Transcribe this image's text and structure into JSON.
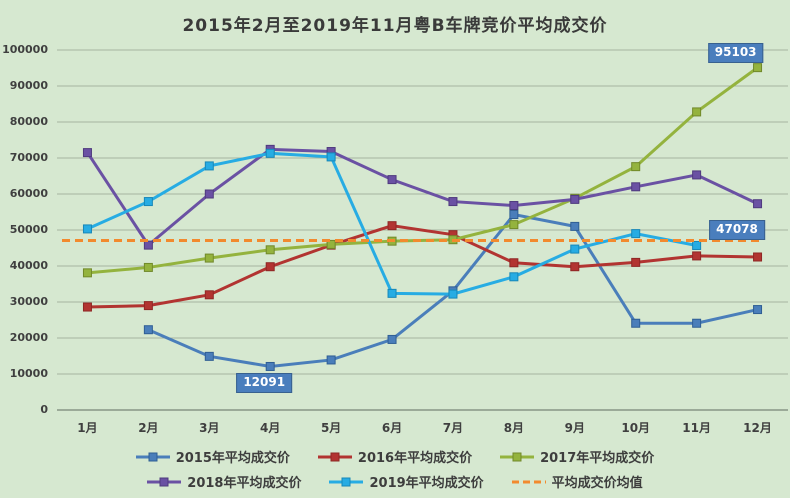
{
  "title": "2015年2月至2019年11月粤B车牌竞价平均成交价",
  "colors": {
    "background": "#D6E8D0",
    "gridline": "#A5B3A1",
    "axis_line": "#879586",
    "label_box_bg": "#4A7EBD",
    "label_box_text": "#FFFFFF"
  },
  "chart_data": {
    "type": "line",
    "categories": [
      "1月",
      "2月",
      "3月",
      "4月",
      "5月",
      "6月",
      "7月",
      "8月",
      "9月",
      "10月",
      "11月",
      "12月"
    ],
    "ylim": [
      0,
      100000
    ],
    "y_ticks": [
      "0",
      "10000",
      "20000",
      "30000",
      "40000",
      "50000",
      "60000",
      "70000",
      "80000",
      "90000",
      "100000"
    ],
    "grid": true,
    "legend_position": "bottom",
    "series": [
      {
        "name": "2015年平均成交价",
        "color": "#4A7EBA",
        "marker_border": "#2F5E94",
        "values": [
          null,
          22300,
          14900,
          12091,
          13900,
          19600,
          33100,
          54300,
          51000,
          24100,
          24100,
          27900
        ]
      },
      {
        "name": "2016年平均成交价",
        "color": "#B23431",
        "marker_border": "#8F2725",
        "values": [
          28600,
          29000,
          32000,
          39800,
          45800,
          51200,
          48700,
          40900,
          39800,
          41000,
          42800,
          42500
        ]
      },
      {
        "name": "2017年平均成交价",
        "color": "#94B33E",
        "marker_border": "#71892A",
        "values": [
          38100,
          39600,
          42200,
          44500,
          46000,
          46900,
          47300,
          51500,
          58800,
          67600,
          82800,
          95103
        ]
      },
      {
        "name": "2018年平均成交价",
        "color": "#6A51A3",
        "marker_border": "#4F3A7E",
        "values": [
          71500,
          45800,
          60000,
          72400,
          71800,
          64000,
          57900,
          56800,
          58500,
          62000,
          65300,
          57300
        ]
      },
      {
        "name": "2019年平均成交价",
        "color": "#27ACE3",
        "marker_border": "#1787B8",
        "values": [
          50300,
          57900,
          67800,
          71300,
          70300,
          32400,
          32200,
          37000,
          44700,
          49000,
          45700,
          null
        ]
      }
    ],
    "mean_line": {
      "name": "平均成交价均值",
      "value": 47078,
      "color": "#F28A2E",
      "style": "dashed"
    },
    "callouts": [
      {
        "text": "12091",
        "month_index": 3,
        "value": 12091,
        "position": "below"
      },
      {
        "text": "95103",
        "month_index": 11,
        "value": 95103,
        "position": "above-left"
      },
      {
        "text": "47078",
        "value": 47078,
        "position": "mean-right"
      }
    ]
  },
  "legend": {
    "rows": [
      [
        "2015年平均成交价",
        "2016年平均成交价",
        "2017年平均成交价"
      ],
      [
        "2018年平均成交价",
        "2019年平均成交价",
        "平均成交价均值"
      ]
    ]
  }
}
